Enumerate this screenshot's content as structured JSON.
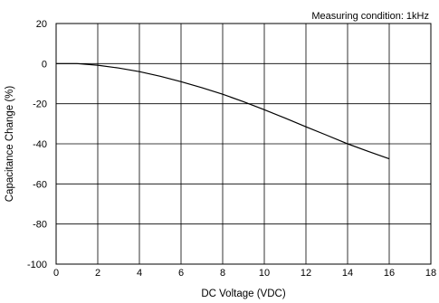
{
  "chart_data": {
    "type": "line",
    "title": "",
    "annotation": "Measuring condition: 1kHz",
    "xlabel": "DC Voltage (VDC)",
    "ylabel": "Capacitance Change (%)",
    "xlim": [
      0,
      18
    ],
    "ylim": [
      -100,
      20
    ],
    "xticks": [
      0,
      2,
      4,
      6,
      8,
      10,
      12,
      14,
      16,
      18
    ],
    "yticks": [
      20,
      0,
      -20,
      -40,
      -60,
      -80,
      -100
    ],
    "grid": true,
    "legend": "none",
    "series": [
      {
        "color": "#000000",
        "x": [
          0,
          1,
          2,
          3,
          4,
          5,
          6,
          7,
          8,
          9,
          10,
          11,
          12,
          13,
          14,
          15,
          16
        ],
        "y": [
          0,
          0,
          -0.8,
          -2.2,
          -4.0,
          -6.3,
          -9.0,
          -12.0,
          -15.3,
          -19.0,
          -23.0,
          -27.2,
          -31.5,
          -35.7,
          -40.0,
          -43.8,
          -47.5
        ]
      }
    ]
  }
}
